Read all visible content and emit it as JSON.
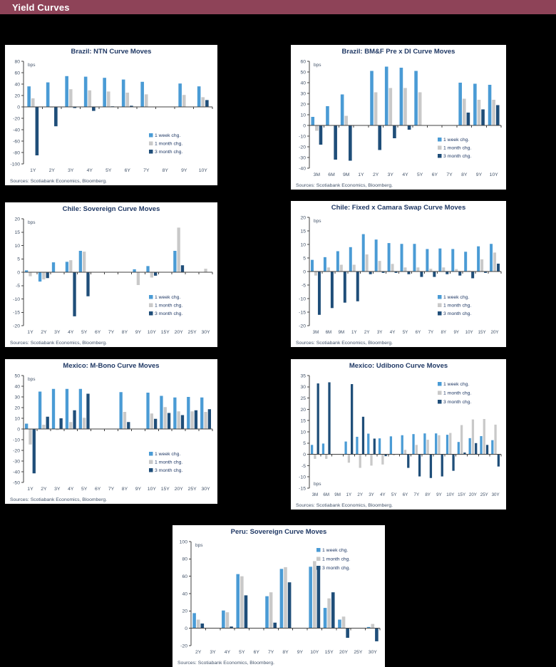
{
  "header": {
    "title": "Yield Curves",
    "bg_color": "#8E4358",
    "text_color": "#FFFFFF"
  },
  "colors": {
    "week": "#4A9BD5",
    "month": "#C9C9C9",
    "quarter": "#1F4E79",
    "axis_line": "#404040",
    "axis_text": "#44546A",
    "title_text": "#1F3864"
  },
  "legend": [
    "1 week chg.",
    "1 month chg.",
    "3 month chg."
  ],
  "chart_data": [
    {
      "type": "bar",
      "title": "Brazil: NTN Curve Moves",
      "unit": "bps",
      "sources": "Sources: Scotiabank Economics, Bloomberg.",
      "ylim": [
        -100,
        80
      ],
      "ystep": 20,
      "legend_pos": "br",
      "bps_pos": "top",
      "categories": [
        "1Y",
        "2Y",
        "3Y",
        "4Y",
        "5Y",
        "6Y",
        "7Y",
        "8Y",
        "9Y",
        "10Y"
      ],
      "series": [
        {
          "name": "1 week chg.",
          "values": [
            36,
            43,
            54,
            53,
            51,
            48,
            44,
            0,
            41,
            36
          ]
        },
        {
          "name": "1 month chg.",
          "values": [
            15,
            -1,
            31,
            29,
            27,
            25,
            22,
            0,
            21,
            17
          ]
        },
        {
          "name": "3 month chg.",
          "values": [
            -85,
            -34,
            -2,
            -7,
            1,
            2,
            0,
            0,
            0,
            12
          ]
        }
      ]
    },
    {
      "type": "bar",
      "title": "Brazil: BM&F Pre x DI Curve Moves",
      "unit": "bps",
      "sources": "Sources: Scotiabank Economics, Bloomberg.",
      "ylim": [
        -40,
        60
      ],
      "ystep": 10,
      "legend_pos": "br",
      "bps_pos": "top",
      "categories": [
        "3M",
        "6M",
        "9M",
        "1Y",
        "2Y",
        "3Y",
        "4Y",
        "5Y",
        "6Y",
        "7Y",
        "8Y",
        "9Y",
        "10Y"
      ],
      "series": [
        {
          "name": "1 week chg.",
          "values": [
            8,
            18,
            29,
            0,
            51,
            55,
            54,
            51,
            0,
            0,
            40,
            39,
            38
          ]
        },
        {
          "name": "1 month chg.",
          "values": [
            -5,
            0,
            9,
            0,
            31,
            35,
            35,
            31,
            0,
            0,
            25,
            24,
            24
          ]
        },
        {
          "name": "3 month chg.",
          "values": [
            -18,
            -32,
            -33,
            0,
            -23,
            -12,
            -4,
            0,
            0,
            0,
            12,
            15,
            19
          ]
        }
      ]
    },
    {
      "type": "bar",
      "title": "Chile: Sovereign Curve Moves",
      "unit": "bps",
      "sources": "Sources: Scotiabank Economics, Bloomberg.",
      "ylim": [
        -20,
        20
      ],
      "ystep": 5,
      "legend_pos": "br",
      "bps_pos": "top",
      "categories": [
        "1Y",
        "2Y",
        "3Y",
        "4Y",
        "5Y",
        "6Y",
        "7Y",
        "8Y",
        "9Y",
        "10Y",
        "15Y",
        "20Y",
        "25Y",
        "30Y"
      ],
      "series": [
        {
          "name": "1 week chg.",
          "values": [
            0.7,
            -3.5,
            3.7,
            3.9,
            8,
            0,
            0,
            0,
            1.1,
            2.3,
            0,
            8,
            0,
            0
          ]
        },
        {
          "name": "1 month chg.",
          "values": [
            -1.5,
            -2.7,
            0,
            4.5,
            7.7,
            0,
            0,
            0,
            -4.8,
            -2,
            0,
            16.7,
            0,
            1.3
          ]
        },
        {
          "name": "3 month chg.",
          "values": [
            0,
            -2.2,
            0,
            -16.5,
            -9,
            0,
            0,
            0,
            0,
            -1.3,
            0,
            2.6,
            0,
            0
          ]
        }
      ]
    },
    {
      "type": "bar",
      "title": "Chile: Fixed x Camara Swap Curve Moves",
      "unit": "bps",
      "sources": "Sources: Scotiabank Economics, Bloomberg.",
      "ylim": [
        -20,
        20
      ],
      "ystep": 5,
      "legend_pos": "br",
      "bps_pos": "top",
      "categories": [
        "3M",
        "6M",
        "9M",
        "1Y",
        "2Y",
        "3Y",
        "4Y",
        "5Y",
        "6Y",
        "7Y",
        "8Y",
        "9Y",
        "10Y",
        "15Y",
        "20Y"
      ],
      "series": [
        {
          "name": "1 week chg.",
          "values": [
            4.3,
            5.3,
            7.5,
            9,
            13.8,
            11.8,
            10.5,
            10.2,
            10.2,
            8.3,
            8.5,
            8.3,
            7.3,
            9.3,
            10.2
          ]
        },
        {
          "name": "1 month chg.",
          "values": [
            -1.5,
            1.5,
            2.5,
            2.5,
            6.3,
            3.9,
            2.8,
            1.5,
            1.5,
            1,
            1.5,
            0.9,
            0.3,
            4.5,
            7
          ]
        },
        {
          "name": "3 month chg.",
          "values": [
            -16,
            -13.5,
            -11.5,
            -11,
            -1,
            -0.5,
            -0.5,
            -1,
            -2,
            -2,
            -1,
            -1.5,
            -2.5,
            -0.5,
            2.9
          ]
        }
      ]
    },
    {
      "type": "bar",
      "title": "Mexico: M-Bono Curve Moves",
      "unit": "bps",
      "sources": "Sources: Scotiabank Economics, Bloomberg.",
      "ylim": [
        -50,
        50
      ],
      "ystep": 10,
      "legend_pos": "br",
      "bps_pos": "top",
      "categories": [
        "1Y",
        "2Y",
        "3Y",
        "4Y",
        "5Y",
        "6Y",
        "7Y",
        "8Y",
        "9Y",
        "10Y",
        "15Y",
        "20Y",
        "25Y",
        "30Y"
      ],
      "series": [
        {
          "name": "1 week chg.",
          "values": [
            5,
            35,
            37.5,
            37.5,
            37.5,
            0,
            0,
            34.5,
            0,
            34,
            31,
            29.5,
            30,
            29.5
          ]
        },
        {
          "name": "1 month chg.",
          "values": [
            -14.5,
            4,
            -1,
            6.5,
            10.5,
            0,
            0,
            16,
            0,
            14.5,
            20.5,
            16.5,
            16.5,
            16
          ]
        },
        {
          "name": "3 month chg.",
          "values": [
            -41.5,
            11.5,
            10,
            17.5,
            33,
            0,
            0,
            6.5,
            0,
            9.5,
            15,
            13,
            17.5,
            18.5
          ]
        }
      ]
    },
    {
      "type": "bar",
      "title": "Mexico: Udibono Curve Moves",
      "unit": "bps",
      "sources": "Sources: Scotiabank Economics, Bloomberg.",
      "ylim": [
        -15,
        35
      ],
      "ystep": 5,
      "legend_pos": "tr",
      "bps_pos": "bottom",
      "categories": [
        "3M",
        "6M",
        "9M",
        "1Y",
        "2Y",
        "3Y",
        "4Y",
        "5Y",
        "6Y",
        "7Y",
        "8Y",
        "9Y",
        "10Y",
        "15Y",
        "20Y",
        "25Y",
        "30Y"
      ],
      "series": [
        {
          "name": "1 week chg.",
          "values": [
            4.2,
            4.8,
            0,
            5.7,
            7.8,
            9.2,
            7.1,
            8,
            8.5,
            9,
            9.3,
            9.3,
            8.7,
            5.5,
            7.2,
            8.1,
            6.3
          ]
        },
        {
          "name": "1 month chg.",
          "values": [
            -2,
            -2,
            0,
            -3.7,
            -6,
            -5,
            -4.5,
            -0.5,
            2,
            4.2,
            6.5,
            8.5,
            9.5,
            13,
            15.5,
            15.7,
            13.2
          ]
        },
        {
          "name": "3 month chg.",
          "values": [
            31.5,
            32,
            0,
            31.2,
            16.7,
            7,
            -0.8,
            0,
            -6,
            -9.8,
            -10.5,
            -9.8,
            -7.3,
            0.8,
            5,
            4.2,
            -5.4
          ]
        }
      ]
    },
    {
      "type": "bar",
      "title": "Peru: Sovereign Curve Moves",
      "unit": "bps",
      "sources": "Sources: Scotiabank Economics, Bloomberg.",
      "ylim": [
        -20,
        100
      ],
      "ystep": 20,
      "legend_pos": "tr",
      "bps_pos": "top",
      "categories": [
        "2Y",
        "3Y",
        "4Y",
        "5Y",
        "6Y",
        "7Y",
        "8Y",
        "9Y",
        "10Y",
        "15Y",
        "20Y",
        "25Y",
        "30Y"
      ],
      "series": [
        {
          "name": "1 week chg.",
          "values": [
            17.5,
            0,
            20.5,
            62.5,
            0,
            37,
            68.5,
            0,
            71,
            23.5,
            10,
            0,
            1.5
          ]
        },
        {
          "name": "1 month chg.",
          "values": [
            10,
            0,
            18.5,
            60,
            0,
            41.5,
            70.5,
            0,
            77.5,
            34.5,
            13.5,
            0,
            5
          ]
        },
        {
          "name": "3 month chg.",
          "values": [
            5.5,
            0,
            2,
            38,
            0,
            6.5,
            53,
            0,
            72,
            41.5,
            -11,
            0,
            -15
          ]
        }
      ]
    }
  ]
}
